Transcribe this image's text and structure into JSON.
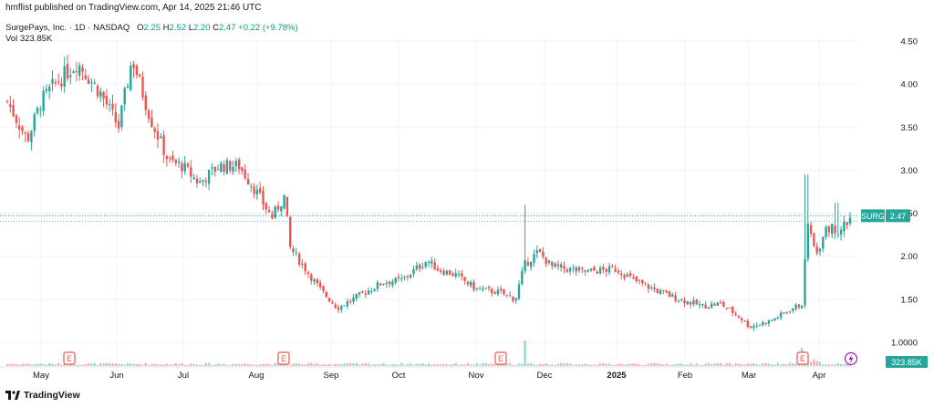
{
  "header": {
    "publisher": "hmflist published on TradingView.com, Apr 14, 2025 21:46 UTC",
    "symbol_desc": "SurgePays, Inc. · 1D · NASDAQ",
    "o_label": "O",
    "o_value": "2.25",
    "h_label": "H",
    "h_value": "2.52",
    "l_label": "L",
    "l_value": "2.20",
    "c_label": "C",
    "c_value": "2.47",
    "change": "+0.22 (+9.78%)",
    "vol_label": "Vol",
    "vol_value": "323.85K"
  },
  "price_tag": {
    "symbol": "SURG",
    "price": "2.47"
  },
  "volume_tag": "323.85K",
  "footer": {
    "brand": "TradingView"
  },
  "colors": {
    "up": "#26a69a",
    "down": "#ef5350",
    "text": "#131722",
    "grid": "#f0f3fa",
    "event": "#ef5350",
    "lightning": "#9c27b0"
  },
  "events": {
    "earnings_marker": "E",
    "markers_at": [
      "May",
      "Aug",
      "Nov",
      "Mar"
    ]
  },
  "chart_data": {
    "type": "candlestick",
    "y_ticks": [
      "4.50",
      "4.00",
      "3.50",
      "3.00",
      "2.50",
      "2.00",
      "1.50",
      "1.0000"
    ],
    "x_ticks": [
      "May",
      "Jun",
      "Jul",
      "Aug",
      "Sep",
      "Oct",
      "Nov",
      "Dec",
      "2025",
      "Feb",
      "Mar",
      "Apr"
    ],
    "ylim": [
      0.85,
      4.7
    ],
    "grid": true,
    "last_close": 2.47,
    "close_path_anchors": [
      {
        "date": "Apr",
        "close": 3.8
      },
      {
        "date": "May",
        "close": 3.8
      },
      {
        "date": "mid-May",
        "close": 4.25
      },
      {
        "date": "Jun",
        "close": 3.5
      },
      {
        "date": "early-Jun",
        "close": 4.3
      },
      {
        "date": "Jul",
        "close": 3.1
      },
      {
        "date": "mid-Jul",
        "close": 2.85
      },
      {
        "date": "late-Jul",
        "close": 3.05
      },
      {
        "date": "Aug",
        "close": 2.45
      },
      {
        "date": "mid-Aug",
        "close": 1.8
      },
      {
        "date": "Sep",
        "close": 1.4
      },
      {
        "date": "Oct",
        "close": 1.7
      },
      {
        "date": "mid-Oct",
        "close": 1.95
      },
      {
        "date": "Nov",
        "close": 1.62
      },
      {
        "date": "late-Nov",
        "close": 1.5
      },
      {
        "date": "Dec",
        "close": 1.85
      },
      {
        "date": "2025",
        "close": 1.85
      },
      {
        "date": "Feb",
        "close": 1.45
      },
      {
        "date": "Mar",
        "close": 1.2
      },
      {
        "date": "late-Mar",
        "close": 1.45
      },
      {
        "date": "late-Mar spike",
        "close": 2.4
      },
      {
        "date": "Apr",
        "close": 2.2
      },
      {
        "date": "Apr 14",
        "close": 2.47
      }
    ]
  }
}
